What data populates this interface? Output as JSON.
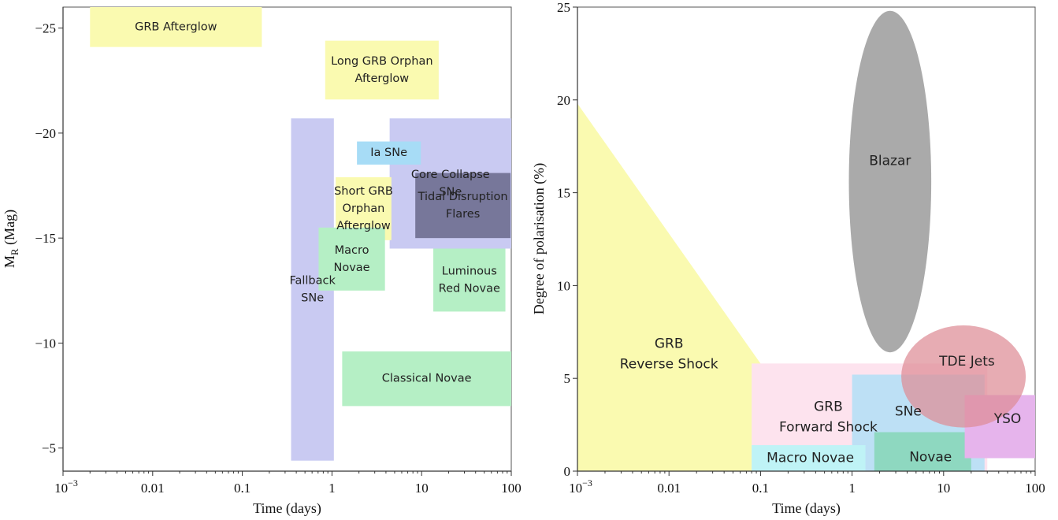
{
  "chart_data": [
    {
      "type": "region",
      "xlabel": "Time (days)",
      "ylabel": "M_R (Mag)",
      "ylabel_main": "M",
      "ylabel_sub": "R",
      "ylabel_unit": " (Mag)",
      "xscale": "log",
      "xlim": [
        0.001,
        100
      ],
      "ylim": [
        -3.9,
        -26
      ],
      "x_ticks": [
        {
          "value": 0.001,
          "base": "10",
          "exp": "−3"
        },
        {
          "value": 0.01,
          "label": "0.01"
        },
        {
          "value": 0.1,
          "label": "0.1"
        },
        {
          "value": 1,
          "label": "1"
        },
        {
          "value": 10,
          "label": "10"
        },
        {
          "value": 100,
          "label": "100"
        }
      ],
      "y_ticks": [
        {
          "value": -5,
          "label": "−5"
        },
        {
          "value": -10,
          "label": "−10"
        },
        {
          "value": -15,
          "label": "−15"
        },
        {
          "value": -20,
          "label": "−20"
        },
        {
          "value": -25,
          "label": "−25"
        }
      ],
      "regions": [
        {
          "name": "region-grb-afterglow",
          "lines": [
            "GRB Afterglow"
          ],
          "x": [
            0.002,
            0.165
          ],
          "y": [
            -24.1,
            -26
          ],
          "color": "#fafab0"
        },
        {
          "name": "region-long-grb-orphan-afterglow",
          "lines": [
            "Long GRB Orphan",
            "Afterglow"
          ],
          "x": [
            0.84,
            15.5
          ],
          "y": [
            -21.6,
            -24.4
          ],
          "color": "#fafab0"
        },
        {
          "name": "region-core-collapse-sne",
          "lines": [
            "Core Collapse",
            "SNe"
          ],
          "x": [
            4.4,
            100
          ],
          "y": [
            -14.5,
            -20.7
          ],
          "color": "#c9caf2"
        },
        {
          "name": "region-fallback-sne",
          "lines": [
            "Fallback",
            "SNe"
          ],
          "x": [
            0.35,
            1.05
          ],
          "y": [
            -4.4,
            -20.7
          ],
          "color": "#c9caf2"
        },
        {
          "name": "region-ia-sne",
          "lines": [
            "Ia SNe"
          ],
          "x": [
            1.9,
            9.8
          ],
          "y": [
            -18.5,
            -19.6
          ],
          "color": "#a7dcf6"
        },
        {
          "name": "region-short-grb-orphan-afterglow",
          "lines": [
            "Short GRB",
            "Orphan",
            "Afterglow"
          ],
          "x": [
            1.1,
            4.6
          ],
          "y": [
            -14.9,
            -17.9
          ],
          "color": "#fafab0"
        },
        {
          "name": "region-tidal-disruption-flares",
          "lines": [
            "Tidal Disruption",
            "Flares"
          ],
          "x": [
            8.5,
            98
          ],
          "y": [
            -15.0,
            -18.1
          ],
          "color": "#77779a"
        },
        {
          "name": "region-macro-novae",
          "lines": [
            "Macro",
            "Novae"
          ],
          "x": [
            0.71,
            3.9
          ],
          "y": [
            -12.5,
            -15.5
          ],
          "color": "#b5efc5"
        },
        {
          "name": "region-luminous-red-novae",
          "lines": [
            "Luminous",
            "Red Novae"
          ],
          "x": [
            13.5,
            86
          ],
          "y": [
            -11.5,
            -14.5
          ],
          "color": "#b5efc5"
        },
        {
          "name": "region-classical-novae",
          "lines": [
            "Classical Novae"
          ],
          "x": [
            1.3,
            100
          ],
          "y": [
            -7.0,
            -9.6
          ],
          "color": "#b5efc5"
        }
      ]
    },
    {
      "type": "region",
      "xlabel": "Time (days)",
      "ylabel": "Degree of polarisation (%)",
      "xscale": "log",
      "xlim": [
        0.001,
        100
      ],
      "ylim": [
        0,
        25
      ],
      "x_ticks": [
        {
          "value": 0.001,
          "base": "10",
          "exp": "−3"
        },
        {
          "value": 0.01,
          "label": "0.01"
        },
        {
          "value": 0.1,
          "label": "0.1"
        },
        {
          "value": 1,
          "label": "1"
        },
        {
          "value": 10,
          "label": "10"
        },
        {
          "value": 100,
          "label": "100"
        }
      ],
      "y_ticks": [
        {
          "value": 0,
          "label": "0"
        },
        {
          "value": 5,
          "label": "5"
        },
        {
          "value": 10,
          "label": "10"
        },
        {
          "value": 15,
          "label": "15"
        },
        {
          "value": 20,
          "label": "20"
        },
        {
          "value": 25,
          "label": "25"
        }
      ],
      "regions": [
        {
          "name": "region-grb-reverse-shock",
          "lines": [
            "GRB",
            "Reverse Shock"
          ],
          "shape": "polygon",
          "points": [
            [
              0.001,
              19.8
            ],
            [
              0.1,
              5.8
            ],
            [
              0.1,
              0
            ],
            [
              0.001,
              0
            ]
          ],
          "color": "#fafab0",
          "label_at": [
            0.01,
            6.3
          ]
        },
        {
          "name": "region-grb-forward-shock",
          "lines": [
            "GRB",
            "Forward Shock"
          ],
          "x": [
            0.08,
            30
          ],
          "y": [
            0,
            5.8
          ],
          "color": "#fde3ee",
          "label_at": [
            0.55,
            2.9
          ]
        },
        {
          "name": "region-sne",
          "lines": [
            "SNe"
          ],
          "x": [
            1,
            28
          ],
          "y": [
            0,
            5.2
          ],
          "color": "#bde0f5",
          "label_at": [
            4.1,
            3.2
          ]
        },
        {
          "name": "region-macro-novae-polarisation",
          "lines": [
            "Macro Novae"
          ],
          "x": [
            0.08,
            1.4
          ],
          "y": [
            0,
            1.4
          ],
          "color": "#bff3f6",
          "label_at": [
            0.35,
            0.7
          ]
        },
        {
          "name": "region-novae",
          "lines": [
            "Novae"
          ],
          "x": [
            1.75,
            20
          ],
          "y": [
            0,
            2.1
          ],
          "color": "#8ed8c0",
          "label_at": [
            7.2,
            0.75
          ]
        },
        {
          "name": "region-yso",
          "lines": [
            "YSO"
          ],
          "x": [
            17,
            100
          ],
          "y": [
            0.7,
            4.1
          ],
          "color": "#e6b4ec",
          "label_at": [
            50,
            2.8
          ]
        },
        {
          "name": "region-tde-jets",
          "lines": [
            "TDE Jets"
          ],
          "shape": "ellipse",
          "cx": 16.5,
          "cy": 5.1,
          "rx_decades": 0.68,
          "ry": 2.75,
          "color": "rgba(222,140,150,0.72)",
          "label_at": [
            18,
            5.9
          ]
        },
        {
          "name": "region-blazar",
          "lines": [
            "Blazar"
          ],
          "shape": "ellipse",
          "cx": 2.6,
          "cy": 15.6,
          "rx_decades": 0.45,
          "ry": 9.2,
          "color": "#aaaaaa",
          "label_at": [
            2.6,
            16.7
          ]
        }
      ]
    }
  ]
}
